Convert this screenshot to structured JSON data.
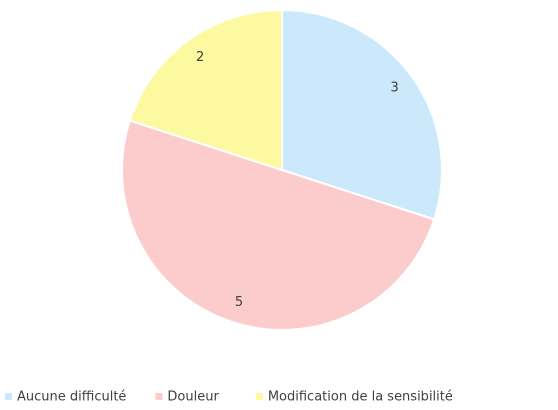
{
  "chart_data": {
    "type": "pie",
    "categories": [
      "Aucune difficulté",
      "Douleur",
      "Modification de la sensibilité"
    ],
    "values": [
      3,
      5,
      2
    ],
    "colors": [
      "#cce9fb",
      "#fccccc",
      "#fdf9a0"
    ]
  }
}
